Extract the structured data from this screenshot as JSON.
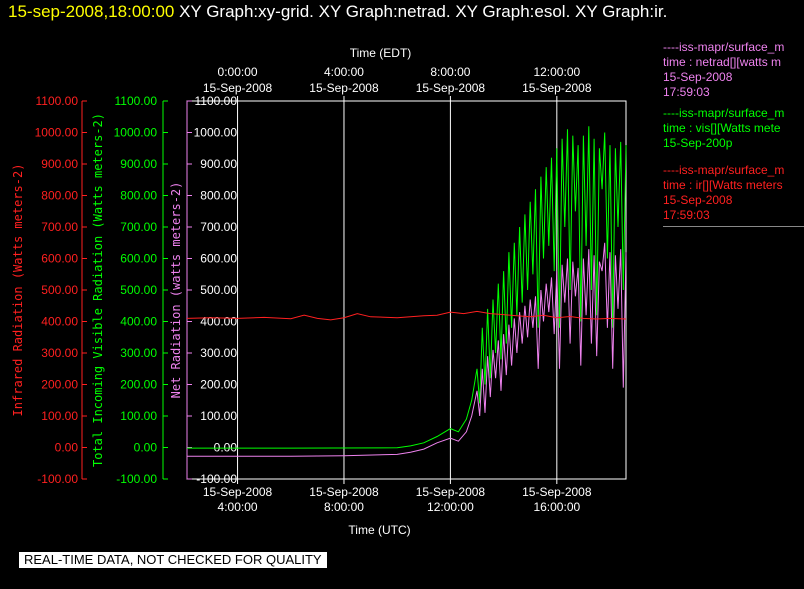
{
  "header": {
    "datetime": "15-sep-2008,18:00:00",
    "graphs": "XY Graph:xy-grid.  XY Graph:netrad.  XY Graph:esol.  XY Graph:ir."
  },
  "legend": [
    {
      "key": "netrad",
      "lines": [
        "----iss-mapr/surface_m",
        "time : netrad[][watts m",
        "15-Sep-2008",
        "17:59:03"
      ]
    },
    {
      "key": "vis",
      "lines": [
        "----iss-mapr/surface_m",
        "time : vis[][Watts mete",
        "15-Sep-200p"
      ]
    },
    {
      "key": "ir",
      "lines": [
        "----iss-mapr/surface_m",
        "time : ir[][Watts meters",
        "15-Sep-2008",
        "17:59:03"
      ]
    }
  ],
  "footer": {
    "warning": "REAL-TIME DATA, NOT CHECKED FOR QUALITY"
  },
  "colors": {
    "ir": "#ff2020",
    "vis": "#00ff00",
    "netrad": "#ee82ee",
    "grid": "#ffffff"
  },
  "chart_data": {
    "type": "line",
    "top_axis": {
      "label": "Time (EDT)",
      "ticks": [
        {
          "x": 0,
          "l1": "0:00:00",
          "l2": "15-Sep-2008"
        },
        {
          "x": 4,
          "l1": "4:00:00",
          "l2": "15-Sep-2008"
        },
        {
          "x": 8,
          "l1": "8:00:00",
          "l2": "15-Sep-2008"
        },
        {
          "x": 12,
          "l1": "12:00:00",
          "l2": "15-Sep-2008"
        }
      ]
    },
    "bottom_axis": {
      "label": "Time (UTC)",
      "ticks": [
        {
          "x": 4,
          "l1": "15-Sep-2008",
          "l2": "4:00:00"
        },
        {
          "x": 8,
          "l1": "15-Sep-2008",
          "l2": "8:00:00"
        },
        {
          "x": 12,
          "l1": "15-Sep-2008",
          "l2": "12:00:00"
        },
        {
          "x": 16,
          "l1": "15-Sep-2008",
          "l2": "16:00:00"
        }
      ]
    },
    "xlim": [
      2.1,
      18.6
    ],
    "ylim": [
      -100,
      1100
    ],
    "yticks": [
      "1100.00",
      "1000.00",
      "900.00",
      "800.00",
      "700.00",
      "600.00",
      "500.00",
      "400.00",
      "300.00",
      "200.00",
      "100.00",
      "0.00",
      "-100.00"
    ],
    "axes": [
      {
        "key": "ir",
        "label": "Infrared Radiation (Watts meters-2)",
        "color": "#ff2020"
      },
      {
        "key": "vis",
        "label": "Total Incoming Visible Radiation (Watts meters-2)",
        "color": "#00ff00"
      },
      {
        "key": "netrad",
        "label": "Net Radiation (watts meters-2)",
        "color": "#ee82ee"
      }
    ],
    "series": [
      {
        "key": "vis",
        "color": "#00ff00",
        "points": [
          [
            2.1,
            -2
          ],
          [
            6,
            -2
          ],
          [
            10,
            -1
          ],
          [
            10.5,
            5
          ],
          [
            11,
            15
          ],
          [
            11.5,
            35
          ],
          [
            12,
            60
          ],
          [
            12.3,
            50
          ],
          [
            12.6,
            90
          ],
          [
            12.8,
            150
          ],
          [
            13,
            250
          ],
          [
            13.1,
            140
          ],
          [
            13.2,
            380
          ],
          [
            13.3,
            200
          ],
          [
            13.4,
            440
          ],
          [
            13.5,
            220
          ],
          [
            13.6,
            470
          ],
          [
            13.7,
            300
          ],
          [
            13.8,
            520
          ],
          [
            13.9,
            280
          ],
          [
            14,
            560
          ],
          [
            14.1,
            330
          ],
          [
            14.2,
            620
          ],
          [
            14.3,
            380
          ],
          [
            14.4,
            650
          ],
          [
            14.5,
            420
          ],
          [
            14.6,
            700
          ],
          [
            14.7,
            460
          ],
          [
            14.8,
            740
          ],
          [
            14.9,
            500
          ],
          [
            15,
            780
          ],
          [
            15.1,
            550
          ],
          [
            15.2,
            820
          ],
          [
            15.3,
            380
          ],
          [
            15.4,
            860
          ],
          [
            15.5,
            600
          ],
          [
            15.6,
            890
          ],
          [
            15.7,
            640
          ],
          [
            15.8,
            920
          ],
          [
            15.9,
            560
          ],
          [
            16,
            950
          ],
          [
            16.1,
            380
          ],
          [
            16.2,
            980
          ],
          [
            16.3,
            700
          ],
          [
            16.4,
            1010
          ],
          [
            16.5,
            500
          ],
          [
            16.6,
            990
          ],
          [
            16.7,
            750
          ],
          [
            16.8,
            960
          ],
          [
            16.9,
            400
          ],
          [
            17,
            990
          ],
          [
            17.1,
            640
          ],
          [
            17.2,
            1020
          ],
          [
            17.3,
            500
          ],
          [
            17.4,
            980
          ],
          [
            17.5,
            420
          ],
          [
            17.6,
            950
          ],
          [
            17.7,
            820
          ],
          [
            17.8,
            1000
          ],
          [
            17.9,
            600
          ],
          [
            18,
            960
          ],
          [
            18.1,
            380
          ],
          [
            18.2,
            950
          ],
          [
            18.3,
            700
          ],
          [
            18.4,
            970
          ],
          [
            18.5,
            500
          ],
          [
            18.6,
            960
          ]
        ]
      },
      {
        "key": "netrad",
        "color": "#ee82ee",
        "points": [
          [
            2.1,
            -28
          ],
          [
            6,
            -28
          ],
          [
            8,
            -26
          ],
          [
            10,
            -22
          ],
          [
            10.5,
            -15
          ],
          [
            11,
            -5
          ],
          [
            11.5,
            15
          ],
          [
            12,
            30
          ],
          [
            12.3,
            20
          ],
          [
            12.6,
            50
          ],
          [
            12.8,
            100
          ],
          [
            13,
            180
          ],
          [
            13.1,
            100
          ],
          [
            13.2,
            250
          ],
          [
            13.3,
            110
          ],
          [
            13.4,
            290
          ],
          [
            13.5,
            160
          ],
          [
            13.6,
            310
          ],
          [
            13.7,
            220
          ],
          [
            13.8,
            340
          ],
          [
            13.9,
            180
          ],
          [
            14,
            360
          ],
          [
            14.1,
            230
          ],
          [
            14.2,
            390
          ],
          [
            14.3,
            260
          ],
          [
            14.4,
            410
          ],
          [
            14.5,
            300
          ],
          [
            14.6,
            430
          ],
          [
            14.7,
            330
          ],
          [
            14.8,
            450
          ],
          [
            14.9,
            350
          ],
          [
            15,
            470
          ],
          [
            15.1,
            380
          ],
          [
            15.2,
            480
          ],
          [
            15.3,
            250
          ],
          [
            15.4,
            500
          ],
          [
            15.5,
            400
          ],
          [
            15.6,
            520
          ],
          [
            15.7,
            430
          ],
          [
            15.8,
            540
          ],
          [
            15.9,
            360
          ],
          [
            16,
            560
          ],
          [
            16.1,
            250
          ],
          [
            16.2,
            580
          ],
          [
            16.3,
            460
          ],
          [
            16.4,
            600
          ],
          [
            16.5,
            330
          ],
          [
            16.6,
            590
          ],
          [
            16.7,
            480
          ],
          [
            16.8,
            570
          ],
          [
            16.9,
            260
          ],
          [
            17,
            600
          ],
          [
            17.1,
            420
          ],
          [
            17.2,
            630
          ],
          [
            17.3,
            330
          ],
          [
            17.4,
            610
          ],
          [
            17.5,
            290
          ],
          [
            17.6,
            590
          ],
          [
            17.7,
            560
          ],
          [
            17.8,
            650
          ],
          [
            17.9,
            380
          ],
          [
            18,
            620
          ],
          [
            18.1,
            250
          ],
          [
            18.2,
            610
          ],
          [
            18.3,
            440
          ],
          [
            18.4,
            630
          ],
          [
            18.5,
            190
          ],
          [
            18.6,
            620
          ]
        ]
      },
      {
        "key": "ir",
        "color": "#ff2020",
        "points": [
          [
            2.1,
            410
          ],
          [
            3,
            412
          ],
          [
            4,
            410
          ],
          [
            5,
            413
          ],
          [
            6,
            409
          ],
          [
            6.5,
            420
          ],
          [
            7,
            410
          ],
          [
            7.5,
            405
          ],
          [
            8,
            412
          ],
          [
            8.5,
            425
          ],
          [
            9,
            415
          ],
          [
            10,
            412
          ],
          [
            11,
            418
          ],
          [
            11.5,
            420
          ],
          [
            12,
            430
          ],
          [
            12.5,
            425
          ],
          [
            13,
            432
          ],
          [
            13.5,
            425
          ],
          [
            14,
            422
          ],
          [
            14.5,
            418
          ],
          [
            15,
            415
          ],
          [
            15.5,
            420
          ],
          [
            16,
            412
          ],
          [
            16.5,
            416
          ],
          [
            17,
            410
          ],
          [
            17.5,
            408
          ],
          [
            18,
            410
          ],
          [
            18.6,
            408
          ]
        ]
      }
    ]
  }
}
